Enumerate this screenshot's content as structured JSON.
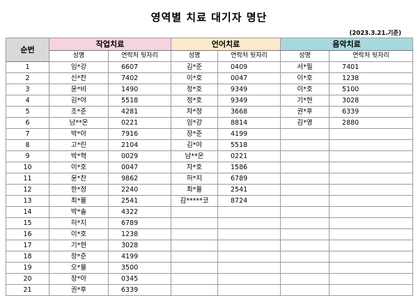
{
  "title": "영역별 치료 대기자 명단",
  "date": "(2023.3.21.기준)",
  "headers": {
    "seq": "순번",
    "occupational": "작업치료",
    "language": "언어치료",
    "music": "음악치료",
    "name_col": "성명",
    "phone_col": "연락처 뒷자리"
  },
  "rows": [
    {
      "n": "1",
      "o_name": "임*강",
      "o_phone": "6607",
      "l_name": "김*준",
      "l_phone": "0409",
      "m_name": "서*필",
      "m_phone": "7401"
    },
    {
      "n": "2",
      "o_name": "신*찬",
      "o_phone": "7402",
      "l_name": "이*호",
      "l_phone": "0047",
      "m_name": "이*호",
      "m_phone": "1238"
    },
    {
      "n": "3",
      "o_name": "윤*비",
      "o_phone": "1490",
      "l_name": "정*호",
      "l_phone": "9349",
      "m_name": "이*호",
      "m_phone": "5100"
    },
    {
      "n": "4",
      "o_name": "김*야",
      "o_phone": "5518",
      "l_name": "정*호",
      "l_phone": "9349",
      "m_name": "기*현",
      "m_phone": "3028"
    },
    {
      "n": "5",
      "o_name": "조*준",
      "o_phone": "4281",
      "l_name": "차*정",
      "l_phone": "3668",
      "m_name": "권*후",
      "m_phone": "6339"
    },
    {
      "n": "6",
      "o_name": "남**온",
      "o_phone": "0221",
      "l_name": "임*강",
      "l_phone": "8814",
      "m_name": "김*영",
      "m_phone": "2880"
    },
    {
      "n": "7",
      "o_name": "박*아",
      "o_phone": "7916",
      "l_name": "장*준",
      "l_phone": "4199",
      "m_name": "",
      "m_phone": ""
    },
    {
      "n": "8",
      "o_name": "고*린",
      "o_phone": "2104",
      "l_name": "김*야",
      "l_phone": "5518",
      "m_name": "",
      "m_phone": ""
    },
    {
      "n": "9",
      "o_name": "박*혁",
      "o_phone": "0029",
      "l_name": "남**온",
      "l_phone": "0221",
      "m_name": "",
      "m_phone": ""
    },
    {
      "n": "10",
      "o_name": "이*호",
      "o_phone": "0047",
      "l_name": "차*호",
      "l_phone": "1586",
      "m_name": "",
      "m_phone": ""
    },
    {
      "n": "11",
      "o_name": "윤*찬",
      "o_phone": "9862",
      "l_name": "허*지",
      "l_phone": "6789",
      "m_name": "",
      "m_phone": ""
    },
    {
      "n": "12",
      "o_name": "한*정",
      "o_phone": "2240",
      "l_name": "최*율",
      "l_phone": "2541",
      "m_name": "",
      "m_phone": ""
    },
    {
      "n": "13",
      "o_name": "최*율",
      "o_phone": "2541",
      "l_name": "김*****코",
      "l_phone": "8724",
      "m_name": "",
      "m_phone": ""
    },
    {
      "n": "14",
      "o_name": "박*솔",
      "o_phone": "4322",
      "l_name": "",
      "l_phone": "",
      "m_name": "",
      "m_phone": ""
    },
    {
      "n": "15",
      "o_name": "허*지",
      "o_phone": "6789",
      "l_name": "",
      "l_phone": "",
      "m_name": "",
      "m_phone": ""
    },
    {
      "n": "16",
      "o_name": "이*호",
      "o_phone": "1238",
      "l_name": "",
      "l_phone": "",
      "m_name": "",
      "m_phone": ""
    },
    {
      "n": "17",
      "o_name": "기*현",
      "o_phone": "3028",
      "l_name": "",
      "l_phone": "",
      "m_name": "",
      "m_phone": ""
    },
    {
      "n": "18",
      "o_name": "장*준",
      "o_phone": "4199",
      "l_name": "",
      "l_phone": "",
      "m_name": "",
      "m_phone": ""
    },
    {
      "n": "19",
      "o_name": "오*율",
      "o_phone": "3500",
      "l_name": "",
      "l_phone": "",
      "m_name": "",
      "m_phone": ""
    },
    {
      "n": "20",
      "o_name": "장*아",
      "o_phone": "0345",
      "l_name": "",
      "l_phone": "",
      "m_name": "",
      "m_phone": ""
    },
    {
      "n": "21",
      "o_name": "권*후",
      "o_phone": "6339",
      "l_name": "",
      "l_phone": "",
      "m_name": "",
      "m_phone": ""
    }
  ]
}
